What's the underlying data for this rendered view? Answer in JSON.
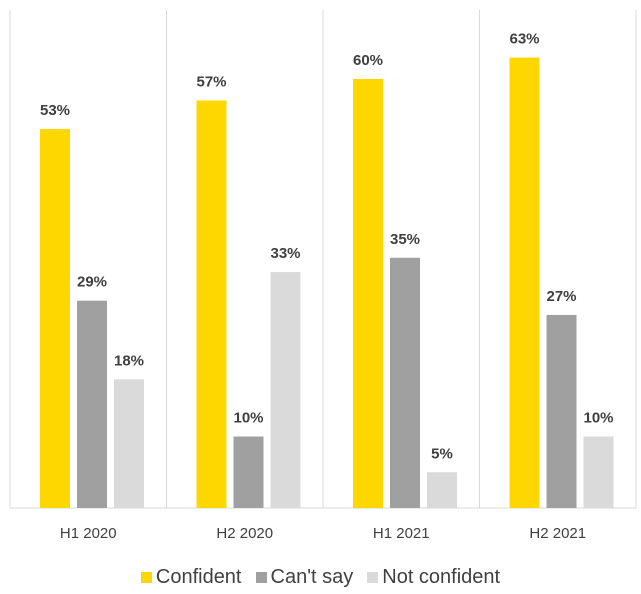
{
  "chart_data": {
    "type": "bar",
    "categories": [
      "H1 2020",
      "H2 2020",
      "H1 2021",
      "H2 2021"
    ],
    "series": [
      {
        "name": "Confident",
        "color": "#FFD700",
        "values": [
          53,
          57,
          60,
          63
        ],
        "labels": [
          "53%",
          "57%",
          "60%",
          "63%"
        ]
      },
      {
        "name": "Can't say",
        "color": "#A0A0A0",
        "values": [
          29,
          10,
          35,
          27
        ],
        "labels": [
          "29%",
          "10%",
          "35%",
          "27%"
        ]
      },
      {
        "name": "Not confident",
        "color": "#DADADA",
        "values": [
          18,
          33,
          5,
          10
        ],
        "labels": [
          "18%",
          "33%",
          "5%",
          "10%"
        ]
      }
    ],
    "ylim": [
      0,
      70
    ],
    "grid": "vertical separators between categories",
    "legend_position": "bottom"
  }
}
